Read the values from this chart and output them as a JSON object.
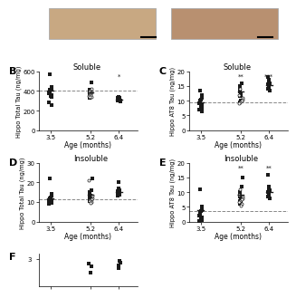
{
  "panel_B": {
    "title": "Soluble",
    "ylabel": "Hippo Total Tau (ng/mg)",
    "xlabel": "Age (months)",
    "xticks": [
      3.5,
      5.2,
      6.4
    ],
    "ylim": [
      0,
      600
    ],
    "yticks": [
      0,
      200,
      400,
      600
    ],
    "dashed_y": 407,
    "filled_data": {
      "3.5": [
        570,
        440,
        420,
        415,
        410,
        390,
        380,
        360,
        350,
        340,
        285,
        260
      ],
      "5.2": [
        490,
        410,
        395,
        385,
        375,
        370,
        365,
        360,
        355,
        345,
        335,
        330
      ],
      "6.4": [
        340,
        330,
        325,
        320,
        315,
        310,
        308,
        305,
        300,
        298,
        295
      ]
    },
    "open_data": {
      "3.5": [],
      "5.2": [
        420,
        400,
        390,
        385,
        375,
        365,
        355,
        345,
        340,
        335
      ],
      "6.4": []
    },
    "mean_data": {
      "3.5": {
        "mean": 405,
        "sem": 20
      },
      "5.2": {
        "mean": 385,
        "sem": 12
      },
      "6.4": {
        "mean": 315,
        "sem": 8
      }
    },
    "significance": {
      "6.4": "*"
    }
  },
  "panel_C": {
    "title": "Soluble",
    "ylabel": "Hippo AT8 Tau (ng/mg)",
    "xlabel": "Age (months)",
    "xticks": [
      3.5,
      5.2,
      6.4
    ],
    "ylim": [
      0,
      20
    ],
    "yticks": [
      0,
      5,
      10,
      15,
      20
    ],
    "dashed_y": 9.5,
    "filled_data": {
      "3.5": [
        13.5,
        12,
        11,
        10.5,
        10,
        9.5,
        9,
        8.5,
        8,
        7.5,
        7,
        6.5
      ],
      "5.2": [
        16,
        15,
        14,
        13.5,
        13,
        12.5,
        12,
        11.5,
        10,
        9.5
      ],
      "6.4": [
        18,
        17,
        16.5,
        16,
        15.5,
        15,
        14.5,
        14,
        13.5
      ]
    },
    "open_data": {
      "3.5": [],
      "5.2": [
        14,
        12,
        11,
        10.5,
        10,
        9.5,
        9.0
      ],
      "6.4": []
    },
    "mean_data": {
      "3.5": {
        "mean": 9.5,
        "sem": 0.8
      },
      "5.2": {
        "mean": 13.0,
        "sem": 0.7
      },
      "6.4": {
        "mean": 15.2,
        "sem": 0.6
      }
    },
    "significance": {
      "5.2": "**",
      "6.4": "***"
    }
  },
  "panel_D": {
    "title": "Insoluble",
    "ylabel": "Hippo Total Tau (ng/mg)",
    "xlabel": "Age (months)",
    "xticks": [
      3.5,
      5.2,
      6.4
    ],
    "ylim": [
      0,
      30
    ],
    "yticks": [
      0,
      10,
      20,
      30
    ],
    "dashed_y": 11.5,
    "filled_data": {
      "3.5": [
        22,
        14,
        13,
        12.5,
        12,
        11.5,
        11,
        10.5,
        10,
        9.5,
        9
      ],
      "5.2": [
        22,
        16,
        15,
        14.5,
        14,
        13.5,
        13,
        12.5,
        12,
        11.5,
        11,
        10.5
      ],
      "6.4": [
        20,
        17,
        16,
        15.5,
        15,
        14.5,
        14,
        13.5,
        13
      ]
    },
    "open_data": {
      "3.5": [],
      "5.2": [
        21,
        13,
        12,
        11.5,
        11,
        10.5,
        10,
        9.5
      ],
      "6.4": []
    },
    "mean_data": {
      "3.5": {
        "mean": 12.0,
        "sem": 1.0
      },
      "5.2": {
        "mean": 13.5,
        "sem": 0.9
      },
      "6.4": {
        "mean": 15.0,
        "sem": 0.8
      }
    },
    "significance": {}
  },
  "panel_E": {
    "title": "Insoluble",
    "ylabel": "Hippo AT8 Tau (ng/mg)",
    "xlabel": "Age (months)",
    "xticks": [
      3.5,
      5.2,
      6.4
    ],
    "ylim": [
      0,
      20
    ],
    "yticks": [
      0,
      5,
      10,
      15,
      20
    ],
    "dashed_y": 3.5,
    "filled_data": {
      "3.5": [
        11,
        5,
        4,
        3.5,
        3,
        2.5,
        2,
        1.5,
        1,
        0.5,
        0.3
      ],
      "5.2": [
        15,
        12,
        10,
        9.5,
        9,
        8.5,
        8,
        7.5,
        7,
        6.5,
        6
      ],
      "6.4": [
        16,
        12,
        11,
        10.5,
        10,
        9.5,
        9,
        8.5,
        8
      ]
    },
    "open_data": {
      "3.5": [],
      "5.2": [
        11,
        9,
        8.5,
        8,
        7.5,
        7,
        6.5,
        6,
        5.5
      ],
      "6.4": []
    },
    "mean_data": {
      "3.5": {
        "mean": 3.8,
        "sem": 0.9
      },
      "5.2": {
        "mean": 9.0,
        "sem": 0.7
      },
      "6.4": {
        "mean": 10.0,
        "sem": 0.8
      }
    },
    "significance": {
      "5.2": "**",
      "6.4": "**"
    }
  },
  "panel_F": {
    "label": "F",
    "ylabel": "",
    "ytick_label": "3",
    "ylim": [
      0,
      3.5
    ],
    "filled_data_52": [
      2.5,
      2.2,
      1.5
    ],
    "filled_data_64": [
      2.8,
      2.6,
      2.3,
      2.0
    ]
  },
  "image_section": {
    "left_color": "#c8a882",
    "right_color": "#b89070",
    "border_color": "#aaaaaa",
    "scalebar_color": "#000000"
  },
  "colors": {
    "filled": "#1a1a1a",
    "open_face": "#ffffff",
    "open_edge": "#1a1a1a",
    "dashed": "#888888",
    "mean_line": "#1a1a1a",
    "significance": "#1a1a1a"
  }
}
